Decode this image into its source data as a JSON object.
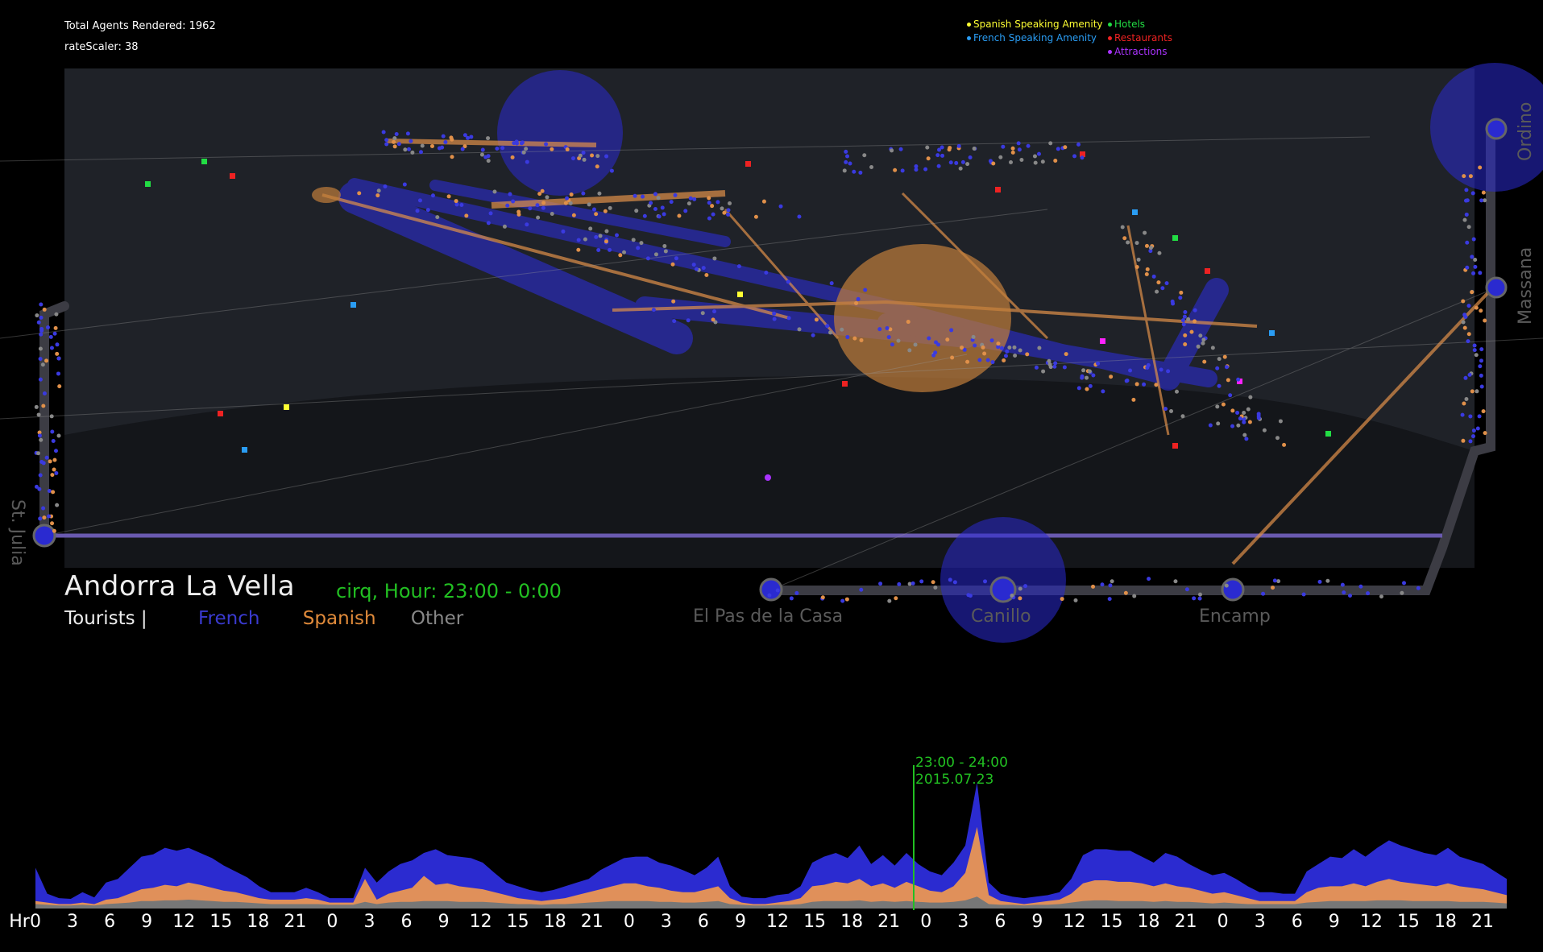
{
  "stats": {
    "total_agents": "Total Agents Rendered: 1962",
    "rate_scaler": "rateScaler: 38"
  },
  "legend": {
    "col1": [
      {
        "label": "Spanish Speaking Amenity",
        "color": "#ffff33"
      },
      {
        "label": "French Speaking Amenity",
        "color": "#2a9df4"
      }
    ],
    "col2": [
      {
        "label": "Hotels",
        "color": "#22dd44"
      },
      {
        "label": "Restaurants",
        "color": "#ee2222"
      },
      {
        "label": "Attractions",
        "color": "#aa33ff"
      }
    ]
  },
  "cities": {
    "st_julia": "St. Julia",
    "el_pas": "El Pas de la Casa",
    "canillo": "Canillo",
    "encamp": "Encamp",
    "massana": "Massana",
    "ordino": "Ordino"
  },
  "title": "Andorra La Vella",
  "hour_label": "cirq, Hour: 23:00 - 0:00",
  "tourists": {
    "label": "Tourists |",
    "french": "French",
    "spanish": "Spanish",
    "other": "Other",
    "colors": {
      "french": "#3a3ad0",
      "spanish": "#e08a3a",
      "other": "#888888"
    }
  },
  "peak": {
    "time": "23:00 - 24:00",
    "date": "2015.07.23"
  },
  "chart_data": {
    "type": "area",
    "x_prefix": "Hr",
    "x_ticks": [
      "0",
      "3",
      "6",
      "9",
      "12",
      "15",
      "18",
      "21",
      "0",
      "3",
      "6",
      "9",
      "12",
      "15",
      "18",
      "21",
      "0",
      "3",
      "6",
      "9",
      "12",
      "15",
      "18",
      "21",
      "0",
      "3",
      "6",
      "9",
      "12",
      "15",
      "18",
      "21",
      "0",
      "3",
      "6",
      "9",
      "12",
      "15",
      "18",
      "21"
    ],
    "series": [
      {
        "name": "French",
        "color": "#2b2bd0",
        "values": [
          55,
          20,
          14,
          13,
          22,
          15,
          35,
          40,
          55,
          70,
          73,
          82,
          78,
          82,
          75,
          68,
          58,
          50,
          42,
          30,
          22,
          22,
          22,
          28,
          22,
          14,
          14,
          14,
          55,
          35,
          50,
          60,
          65,
          75,
          80,
          72,
          70,
          68,
          62,
          48,
          35,
          30,
          25,
          22,
          25,
          30,
          35,
          40,
          52,
          60,
          68,
          70,
          70,
          62,
          58,
          52,
          45,
          55,
          70,
          30,
          16,
          14,
          14,
          18,
          20,
          30,
          62,
          70,
          75,
          68,
          85,
          60,
          72,
          58,
          75,
          60,
          50,
          45,
          62,
          85,
          170,
          35,
          20,
          16,
          14,
          16,
          18,
          22,
          40,
          72,
          80,
          80,
          78,
          78,
          70,
          62,
          75,
          70,
          60,
          52,
          45,
          48,
          40,
          30,
          22,
          22,
          20,
          20,
          50,
          60,
          70,
          68,
          80,
          70,
          82,
          92,
          85,
          80,
          75,
          72,
          82,
          70,
          65,
          60,
          50,
          40
        ]
      },
      {
        "name": "Spanish",
        "color": "#e0905a",
        "values": [
          10,
          8,
          6,
          6,
          8,
          6,
          12,
          14,
          20,
          26,
          28,
          32,
          30,
          35,
          32,
          28,
          24,
          22,
          18,
          14,
          12,
          12,
          12,
          14,
          12,
          8,
          8,
          8,
          40,
          12,
          20,
          24,
          28,
          44,
          32,
          34,
          30,
          28,
          26,
          22,
          18,
          14,
          12,
          10,
          12,
          14,
          18,
          22,
          26,
          30,
          34,
          34,
          30,
          28,
          24,
          22,
          22,
          26,
          30,
          14,
          8,
          6,
          6,
          8,
          10,
          14,
          30,
          32,
          36,
          34,
          40,
          30,
          34,
          28,
          36,
          30,
          24,
          22,
          30,
          48,
          110,
          18,
          10,
          8,
          6,
          8,
          10,
          12,
          20,
          34,
          38,
          38,
          36,
          36,
          34,
          30,
          34,
          30,
          28,
          24,
          20,
          22,
          18,
          14,
          10,
          10,
          10,
          10,
          22,
          28,
          30,
          30,
          34,
          30,
          36,
          40,
          36,
          34,
          32,
          30,
          34,
          30,
          28,
          26,
          22,
          18
        ]
      },
      {
        "name": "Other",
        "color": "#777777",
        "values": [
          6,
          5,
          4,
          4,
          5,
          4,
          6,
          7,
          8,
          10,
          10,
          11,
          11,
          12,
          11,
          10,
          9,
          9,
          8,
          7,
          6,
          6,
          6,
          6,
          6,
          5,
          5,
          5,
          9,
          6,
          8,
          9,
          9,
          10,
          10,
          10,
          9,
          9,
          9,
          8,
          7,
          6,
          6,
          5,
          6,
          6,
          7,
          8,
          9,
          10,
          10,
          10,
          10,
          9,
          9,
          8,
          8,
          9,
          10,
          6,
          5,
          4,
          4,
          5,
          5,
          6,
          9,
          10,
          10,
          10,
          11,
          9,
          10,
          9,
          10,
          9,
          8,
          8,
          9,
          11,
          16,
          6,
          5,
          5,
          4,
          5,
          5,
          6,
          8,
          10,
          11,
          11,
          10,
          10,
          10,
          9,
          10,
          9,
          9,
          8,
          7,
          8,
          7,
          6,
          6,
          6,
          6,
          6,
          8,
          9,
          10,
          10,
          10,
          10,
          11,
          11,
          11,
          10,
          10,
          10,
          10,
          9,
          9,
          9,
          8,
          7
        ]
      }
    ]
  }
}
